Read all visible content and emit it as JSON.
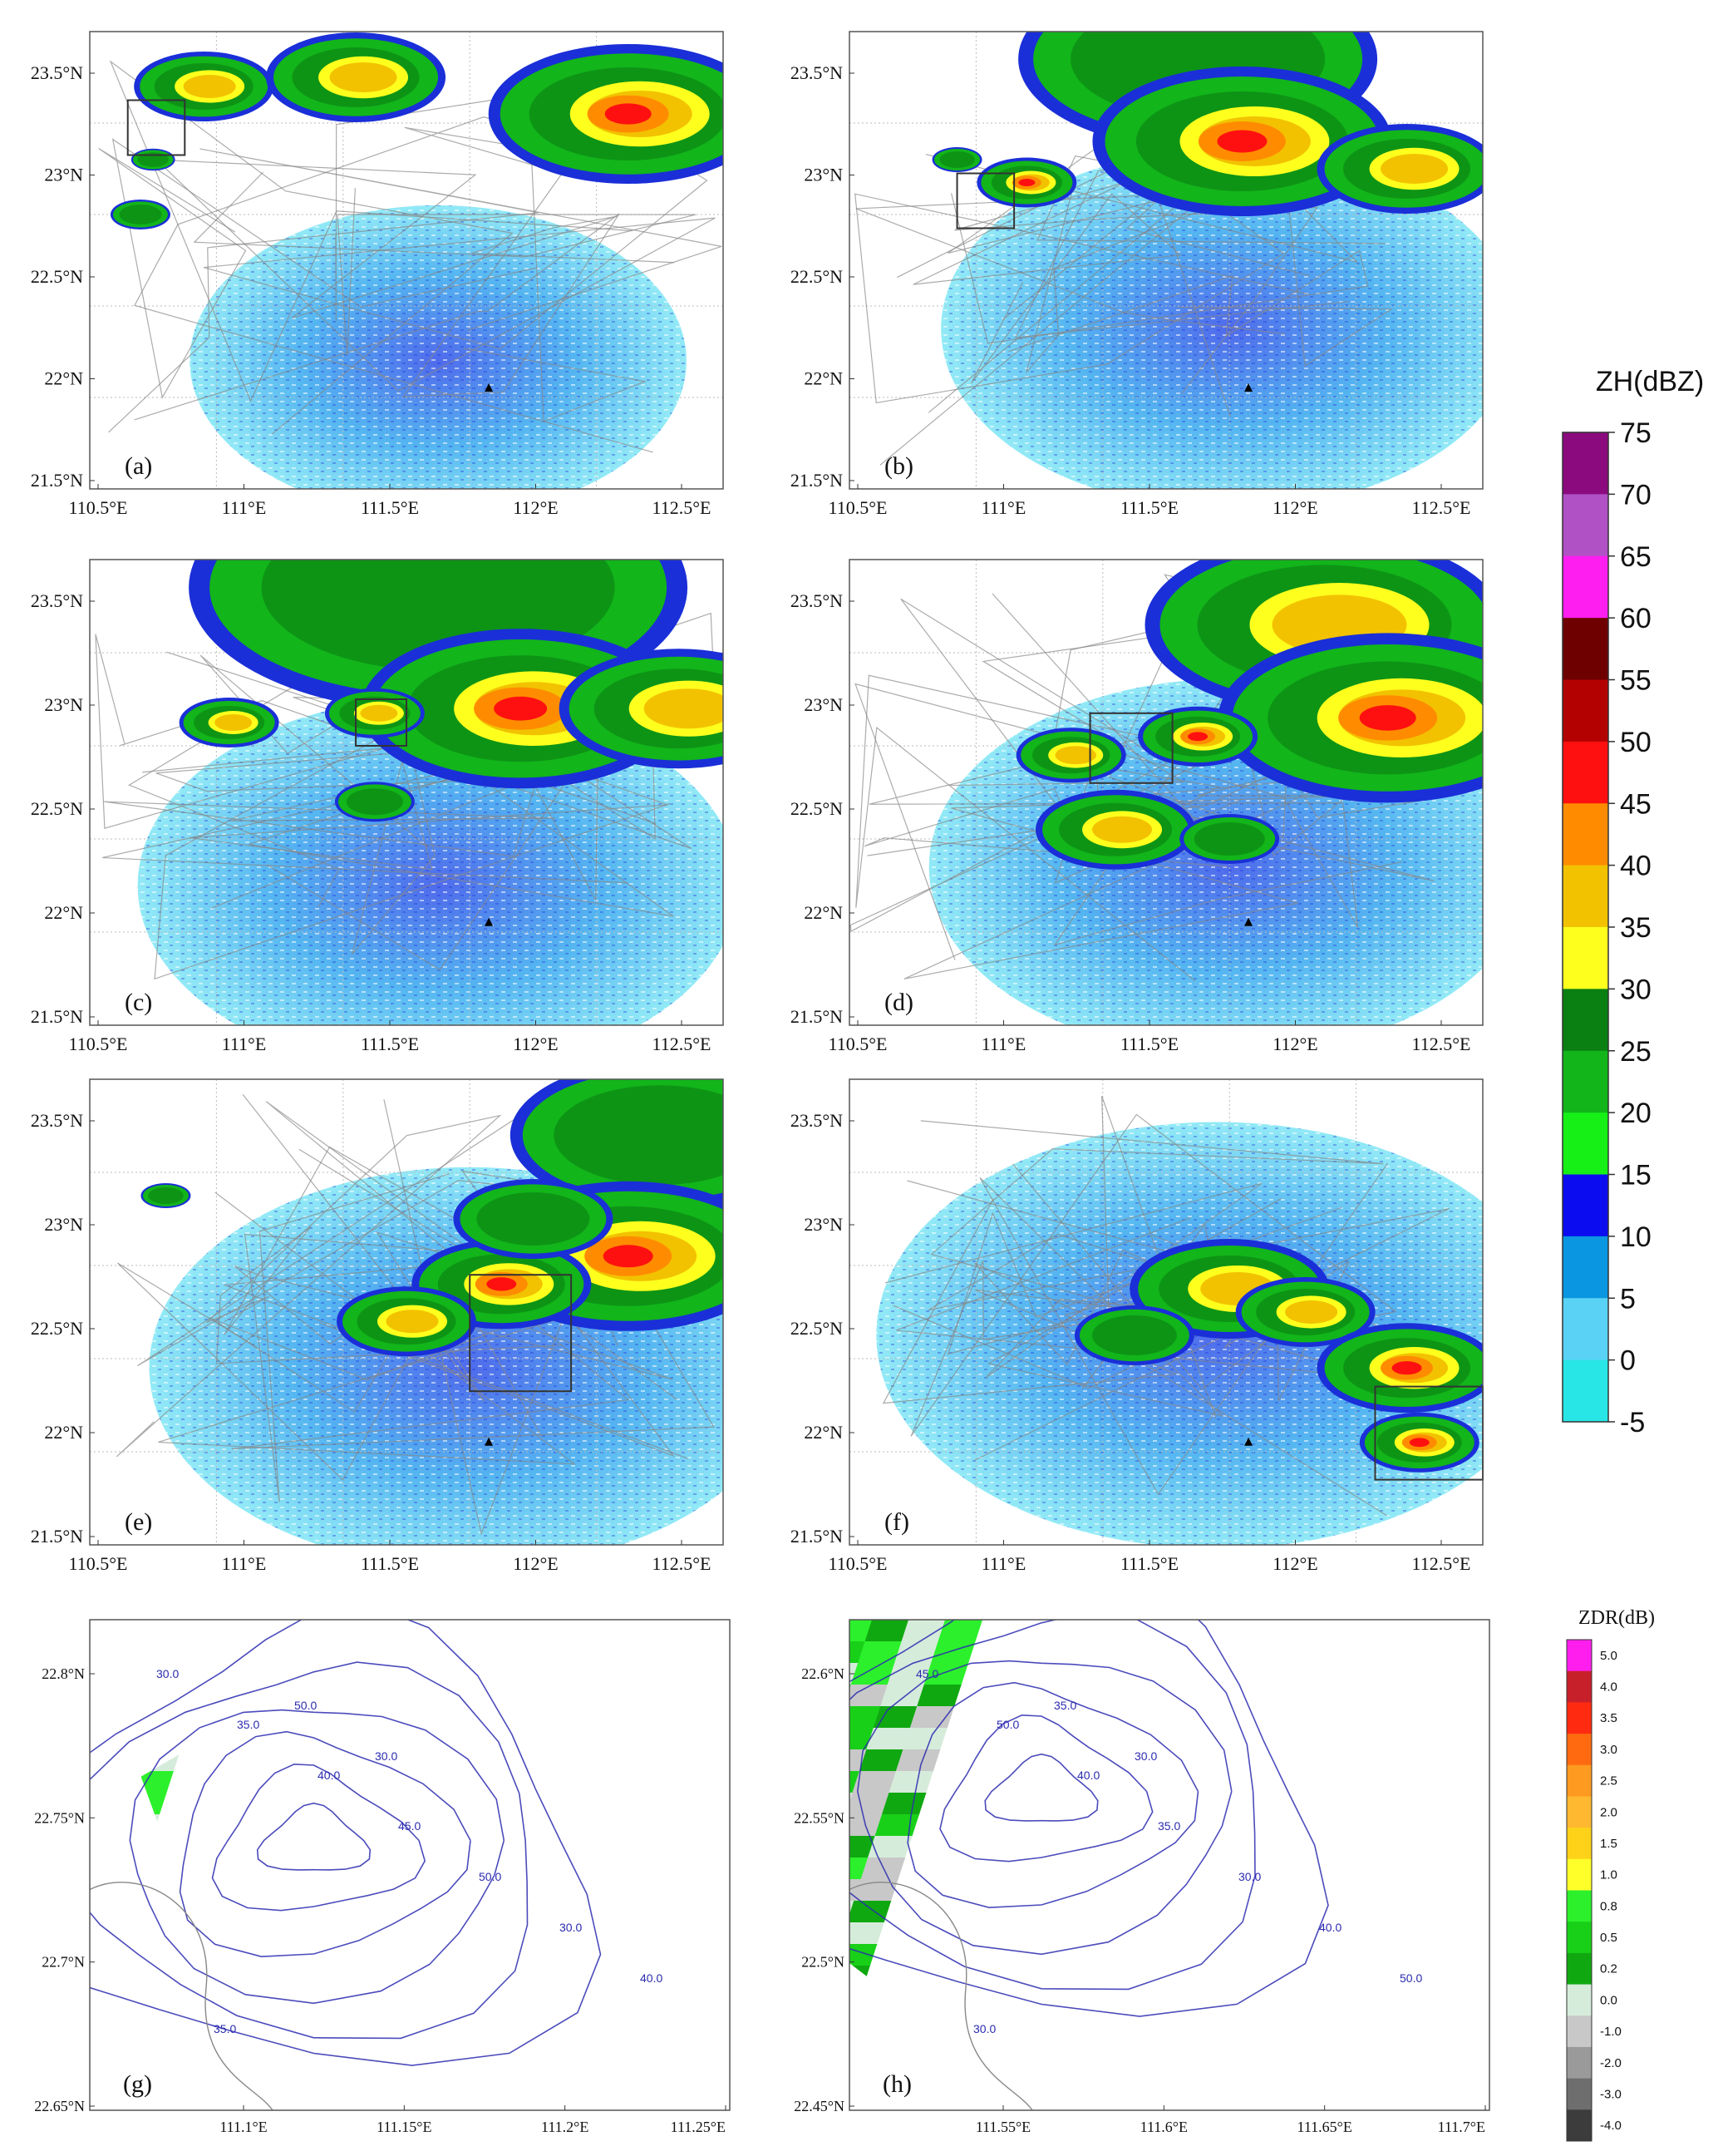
{
  "ppi_panels": [
    {
      "id": "a",
      "label": "(a)",
      "lon_ticks": [
        "110.5°E",
        "111°E",
        "111.5°E",
        "112°E",
        "112.5°E"
      ],
      "lat_ticks": [
        "21.5°N",
        "22°N",
        "22.5°N",
        "23°N",
        "23.5°N"
      ]
    },
    {
      "id": "b",
      "label": "(b)",
      "lon_ticks": [
        "110.5°E",
        "111°E",
        "111.5°E",
        "112°E",
        "112.5°E"
      ],
      "lat_ticks": [
        "21.5°N",
        "22°N",
        "22.5°N",
        "23°N",
        "23.5°N"
      ]
    },
    {
      "id": "c",
      "label": "(c)",
      "lon_ticks": [
        "110.5°E",
        "111°E",
        "111.5°E",
        "112°E",
        "112.5°E"
      ],
      "lat_ticks": [
        "21.5°N",
        "22°N",
        "22.5°N",
        "23°N",
        "23.5°N"
      ]
    },
    {
      "id": "d",
      "label": "(d)",
      "lon_ticks": [
        "110.5°E",
        "111°E",
        "111.5°E",
        "112°E",
        "112.5°E"
      ],
      "lat_ticks": [
        "21.5°N",
        "22°N",
        "22.5°N",
        "23°N",
        "23.5°N"
      ]
    },
    {
      "id": "e",
      "label": "(e)",
      "lon_ticks": [
        "110.5°E",
        "111°E",
        "111.5°E",
        "112°E",
        "112.5°E"
      ],
      "lat_ticks": [
        "21.5°N",
        "22°N",
        "22.5°N",
        "23°N",
        "23.5°N"
      ]
    },
    {
      "id": "f",
      "label": "(f)",
      "lon_ticks": [
        "110.5°E",
        "111°E",
        "111.5°E",
        "112°E",
        "112.5°E"
      ],
      "lat_ticks": [
        "21.5°N",
        "22°N",
        "22.5°N",
        "23°N",
        "23.5°N"
      ]
    }
  ],
  "zoom_panels": [
    {
      "id": "g",
      "label": "(g)",
      "lon_ticks": [
        "111.1°E",
        "111.15°E",
        "111.2°E",
        "111.25°E"
      ],
      "lat_ticks": [
        "22.65°N",
        "22.7°N",
        "22.75°N",
        "22.8°N"
      ],
      "contour_labels": [
        "30.0",
        "35.0",
        "40.0",
        "45.0",
        "50.0",
        "30.0",
        "40.0",
        "35.0",
        "50.0",
        "30.0"
      ]
    },
    {
      "id": "h",
      "label": "(h)",
      "lon_ticks": [
        "111.55°E",
        "111.6°E",
        "111.65°E",
        "111.7°E"
      ],
      "lat_ticks": [
        "22.45°N",
        "22.5°N",
        "22.55°N",
        "22.6°N"
      ],
      "contour_labels": [
        "45.0",
        "50.0",
        "40.0",
        "35.0",
        "30.0",
        "40.0",
        "50.0",
        "30.0",
        "35.0",
        "30.0"
      ]
    }
  ],
  "zh_colorbar": {
    "title": "ZH(dBZ)",
    "levels": [
      "75",
      "70",
      "65",
      "60",
      "55",
      "50",
      "45",
      "40",
      "35",
      "30",
      "25",
      "20",
      "15",
      "10",
      "5",
      "0",
      "-5"
    ],
    "colors": [
      "#8b0b7e",
      "#b052c6",
      "#ff1ef0",
      "#6e0000",
      "#b30000",
      "#ff1010",
      "#ff8c00",
      "#f2c200",
      "#ffff1e",
      "#0a7f12",
      "#12b51a",
      "#16f016",
      "#0c0cf0",
      "#0a96e0",
      "#5ad2f5",
      "#28e6e6"
    ]
  },
  "zdr_colorbar": {
    "title": "ZDR(dB)",
    "levels": [
      "5.0",
      "4.0",
      "3.5",
      "3.0",
      "2.5",
      "2.0",
      "1.5",
      "1.0",
      "0.8",
      "0.5",
      "0.2",
      "0.0",
      "-1.0",
      "-2.0",
      "-3.0",
      "-4.0"
    ],
    "colors": [
      "#ff1eee",
      "#c8202a",
      "#ff2a10",
      "#ff6a10",
      "#ff9a20",
      "#ffb830",
      "#ffd21a",
      "#ffff2a",
      "#2bf02b",
      "#18d018",
      "#10a810",
      "#d6ecdb",
      "#c8c8c8",
      "#9a9a9a",
      "#6e6e6e",
      "#3c3c3c"
    ]
  }
}
